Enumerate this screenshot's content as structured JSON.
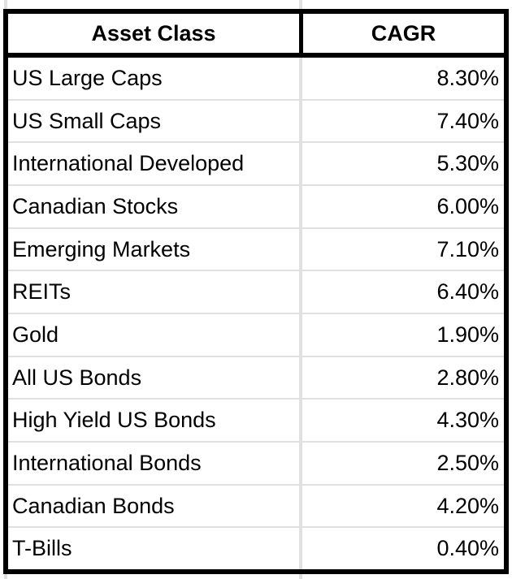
{
  "table": {
    "columns": [
      "Asset Class",
      "CAGR"
    ],
    "rows": [
      {
        "asset": "US Large Caps",
        "cagr": "8.30%"
      },
      {
        "asset": "US Small Caps",
        "cagr": "7.40%"
      },
      {
        "asset": "International Developed",
        "cagr": "5.30%"
      },
      {
        "asset": "Canadian Stocks",
        "cagr": "6.00%"
      },
      {
        "asset": "Emerging Markets",
        "cagr": "7.10%"
      },
      {
        "asset": "REITs",
        "cagr": "6.40%"
      },
      {
        "asset": "Gold",
        "cagr": "1.90%"
      },
      {
        "asset": "All US Bonds",
        "cagr": "2.80%"
      },
      {
        "asset": "High Yield US Bonds",
        "cagr": "4.30%"
      },
      {
        "asset": "International Bonds",
        "cagr": "2.50%"
      },
      {
        "asset": "Canadian Bonds",
        "cagr": "4.20%"
      },
      {
        "asset": "T-Bills",
        "cagr": "0.40%"
      }
    ]
  },
  "colors": {
    "background": "#ffffff",
    "text": "#000000",
    "table_border": "#000000",
    "gridline": "#e0e0e0"
  },
  "chart_data": {
    "type": "table",
    "title": "",
    "columns": [
      "Asset Class",
      "CAGR"
    ],
    "rows": [
      [
        "US Large Caps",
        8.3
      ],
      [
        "US Small Caps",
        7.4
      ],
      [
        "International Developed",
        5.3
      ],
      [
        "Canadian Stocks",
        6.0
      ],
      [
        "Emerging Markets",
        7.1
      ],
      [
        "REITs",
        6.4
      ],
      [
        "Gold",
        1.9
      ],
      [
        "All US Bonds",
        2.8
      ],
      [
        "High Yield US Bonds",
        4.3
      ],
      [
        "International Bonds",
        2.5
      ],
      [
        "Canadian Bonds",
        4.2
      ],
      [
        "T-Bills",
        0.4
      ]
    ],
    "value_unit": "%"
  }
}
